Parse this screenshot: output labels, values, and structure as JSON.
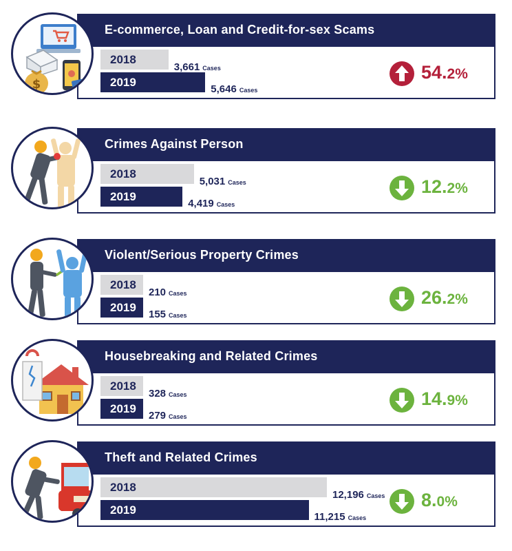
{
  "chart_data": {
    "type": "bar",
    "unit": "Cases",
    "series": [
      {
        "name": "2018",
        "color": "#d9d9db"
      },
      {
        "name": "2019",
        "color": "#1e2559"
      }
    ],
    "panels": [
      {
        "title": "E-commerce, Loan and Credit-for-sex Scams",
        "icon": "ecommerce-scam-icon",
        "values": [
          3661,
          5646
        ],
        "value_labels": [
          "3,661",
          "5,646"
        ],
        "change_direction": "up",
        "change_main": "54.",
        "change_decimal": "2%",
        "change_color": "#b4203a"
      },
      {
        "title": "Crimes Against Person",
        "icon": "assault-icon",
        "values": [
          5031,
          4419
        ],
        "value_labels": [
          "5,031",
          "4,419"
        ],
        "change_direction": "down",
        "change_main": "12.",
        "change_decimal": "2%",
        "change_color": "#6cb33e"
      },
      {
        "title": "Violent/Serious Property Crimes",
        "icon": "robbery-icon",
        "values": [
          210,
          155
        ],
        "value_labels": [
          "210",
          "155"
        ],
        "change_direction": "down",
        "change_main": "26.",
        "change_decimal": "2%",
        "change_color": "#6cb33e"
      },
      {
        "title": "Housebreaking and Related Crimes",
        "icon": "housebreaking-icon",
        "values": [
          328,
          279
        ],
        "value_labels": [
          "328",
          "279"
        ],
        "change_direction": "down",
        "change_main": "14.",
        "change_decimal": "9%",
        "change_color": "#6cb33e"
      },
      {
        "title": "Theft and Related Crimes",
        "icon": "car-theft-icon",
        "values": [
          12196,
          11215
        ],
        "value_labels": [
          "12,196",
          "11,215"
        ],
        "change_direction": "down",
        "change_main": "8.",
        "change_decimal": "0%",
        "change_color": "#6cb33e"
      }
    ]
  }
}
